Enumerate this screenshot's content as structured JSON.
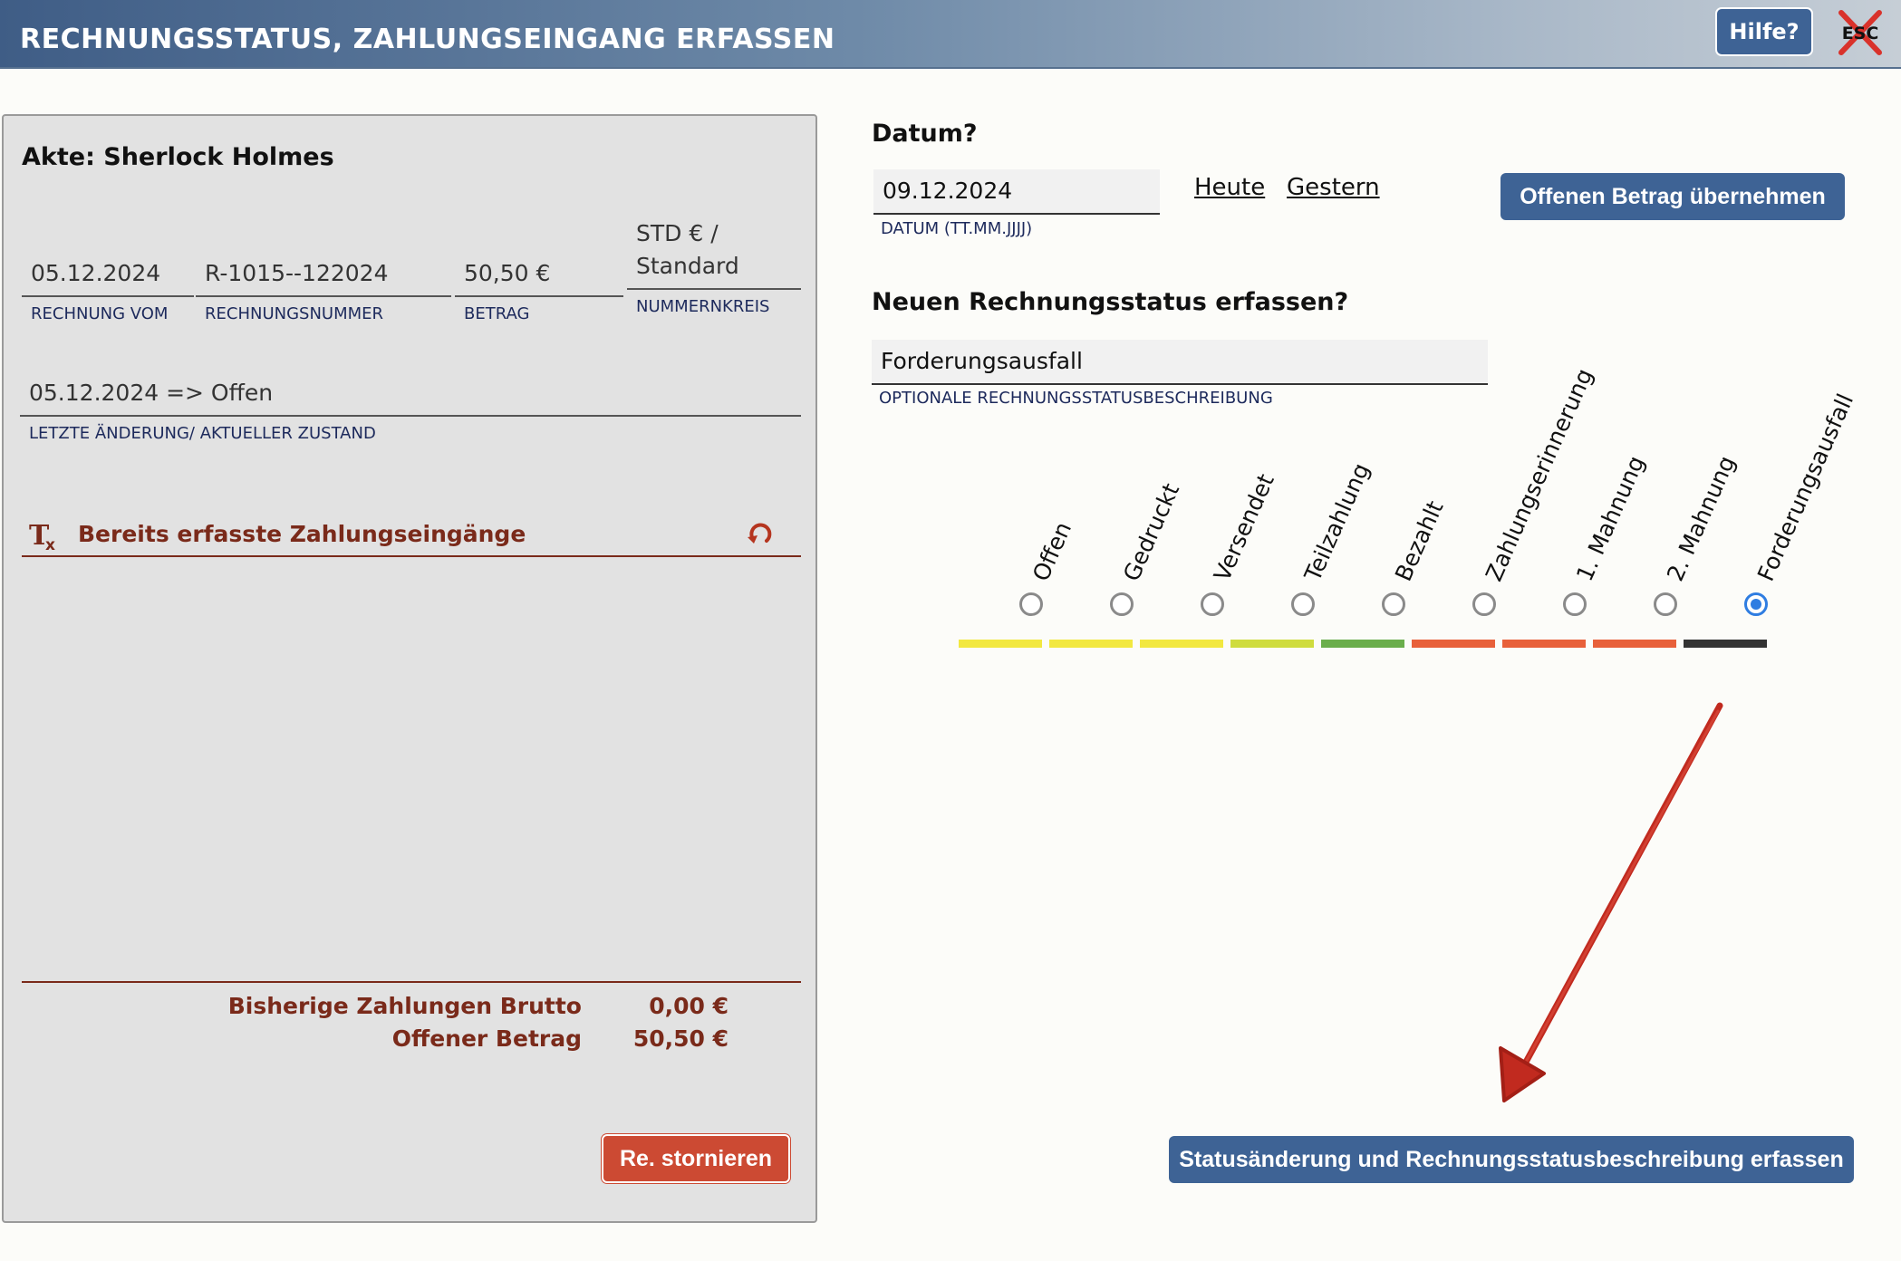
{
  "window": {
    "title": "RECHNUNGSSTATUS, ZAHLUNGSEINGANG ERFASSEN",
    "help_label": "Hilfe?",
    "esc_label": "ESC"
  },
  "akte": {
    "title": "Akte: Sherlock Holmes",
    "rechnung_vom": {
      "value": "05.12.2024",
      "label": "RECHNUNG VOM"
    },
    "rechnungsnummer": {
      "value": "R-1015--122024",
      "label": "RECHNUNGSNUMMER"
    },
    "betrag": {
      "value": "50,50 €",
      "label": "BETRAG"
    },
    "nummernkreis": {
      "value_line1": "STD € /",
      "value_line2": "Standard",
      "label": "NUMMERNKREIS"
    },
    "zustand": {
      "value": "05.12.2024 => Offen",
      "label": "LETZTE ÄNDERUNG/ AKTUELLER ZUSTAND"
    }
  },
  "zahlungen": {
    "header": "Bereits erfasste Zahlungseingänge",
    "bisherige_label": "Bisherige Zahlungen Brutto",
    "bisherige_value": "0,00 €",
    "offener_label": "Offener Betrag",
    "offener_value": "50,50 €",
    "storno_label": "Re. stornieren"
  },
  "datum": {
    "title": "Datum?",
    "value": "09.12.2024",
    "label": "DATUM (TT.MM.JJJJ)",
    "heute": "Heute",
    "gestern": "Gestern",
    "offenen_betrag_button": "Offenen Betrag übernehmen"
  },
  "status": {
    "title": "Neuen Rechnungsstatus erfassen?",
    "beschreibung_value": "Forderungsausfall",
    "beschreibung_label": "OPTIONALE RECHNUNGSSTATUSBESCHREIBUNG",
    "selected": "Forderungsausfall",
    "options": [
      {
        "label": "Offen",
        "color": "#f2e840"
      },
      {
        "label": "Gedruckt",
        "color": "#f2e840"
      },
      {
        "label": "Versendet",
        "color": "#f2e840"
      },
      {
        "label": "Teilzahlung",
        "color": "#cfdc3e"
      },
      {
        "label": "Bezahlt",
        "color": "#6aae4c"
      },
      {
        "label": "Zahlungserinnerung",
        "color": "#e8603a"
      },
      {
        "label": "1. Mahnung",
        "color": "#e8603a"
      },
      {
        "label": "2. Mahnung",
        "color": "#e8603a"
      },
      {
        "label": "Forderungsausfall",
        "color": "#333333"
      }
    ],
    "submit_label": "Statusänderung und Rechnungsstatusbeschreibung erfassen"
  }
}
